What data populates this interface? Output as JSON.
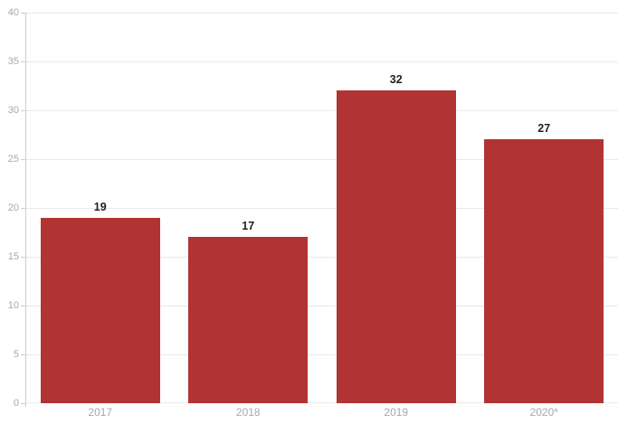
{
  "chart_data": {
    "type": "bar",
    "categories": [
      "2017",
      "2018",
      "2019",
      "2020*"
    ],
    "values": [
      19,
      17,
      32,
      27
    ],
    "title": "",
    "xlabel": "",
    "ylabel": "",
    "ylim": [
      0,
      40
    ],
    "ytick_step": 5,
    "ytick_labels": [
      "0",
      "5",
      "10",
      "15",
      "20",
      "25",
      "30",
      "35",
      "40"
    ],
    "grid": true,
    "legend": "none",
    "colors": {
      "bar": "#b13334",
      "value_label": "#1f1f1f",
      "tick_label": "#a8a8a8",
      "gridline": "#e9e9e9",
      "axis_line": "#cccccc",
      "background": "#ffffff"
    }
  }
}
